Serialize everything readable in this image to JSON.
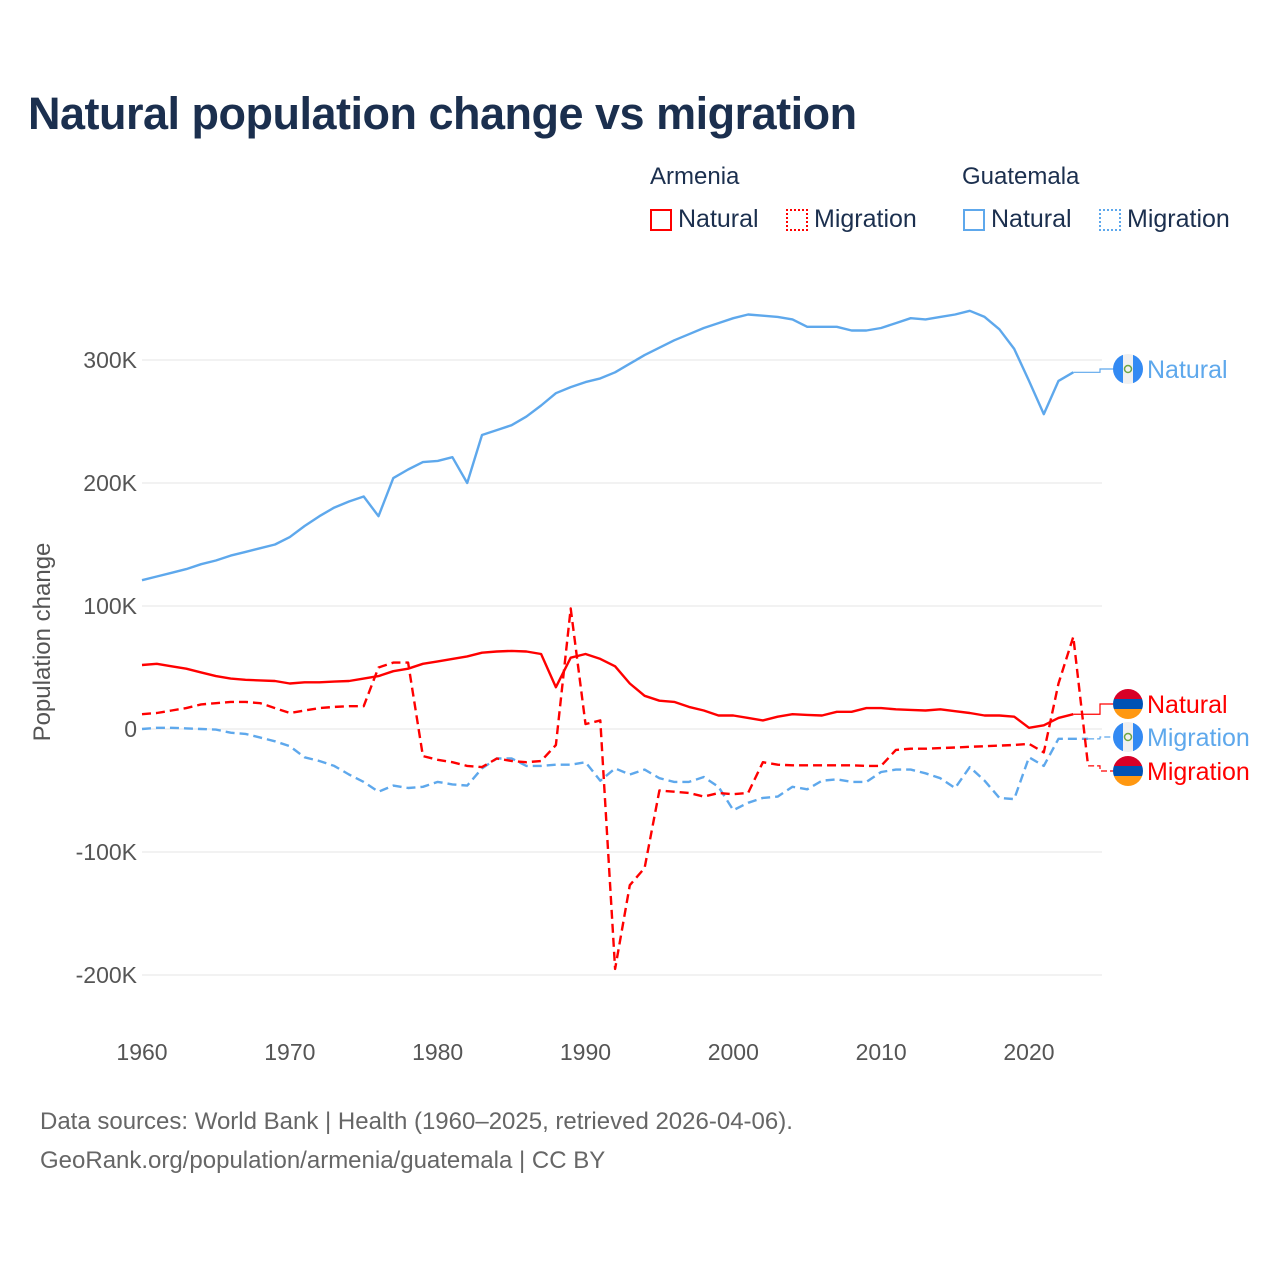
{
  "title": "Natural population change vs migration",
  "legend": {
    "groups": [
      {
        "name": "Armenia",
        "color": "#ff0000",
        "items": [
          "Natural",
          "Migration"
        ]
      },
      {
        "name": "Guatemala",
        "color": "#5ea8ec",
        "items": [
          "Natural",
          "Migration"
        ]
      }
    ]
  },
  "footer": {
    "line1": "Data sources: World Bank | Health (1960–2025, retrieved 2026-04-06).",
    "line2": "GeoRank.org/population/armenia/guatemala | CC BY"
  },
  "chart_data": {
    "type": "line",
    "title": "Natural population change vs migration",
    "xlabel": "",
    "ylabel": "Population change",
    "xlim": [
      1960,
      2025
    ],
    "ylim": [
      -200000,
      300000
    ],
    "x_ticks": [
      "1960",
      "1970",
      "1980",
      "1990",
      "2000",
      "2010",
      "2020"
    ],
    "y_ticks": [
      {
        "value": 300000,
        "label": "300K"
      },
      {
        "value": 200000,
        "label": "200K"
      },
      {
        "value": 100000,
        "label": "100K"
      },
      {
        "value": 0,
        "label": "0"
      },
      {
        "value": -100000,
        "label": "-100K"
      },
      {
        "value": -200000,
        "label": "-200K"
      }
    ],
    "grid": true,
    "start_year": 1960,
    "units": "thousands",
    "series": [
      {
        "name": "Guatemala Natural",
        "label": "Natural",
        "country": "Guatemala",
        "color": "#5ea8ec",
        "dash": false,
        "values": [
          121,
          124,
          127,
          130,
          134,
          137,
          141,
          144,
          147,
          150,
          156,
          165,
          173,
          180,
          185,
          189,
          173,
          204,
          211,
          217,
          218,
          221,
          200,
          239,
          243,
          247,
          254,
          263,
          273,
          278,
          282,
          285,
          290,
          297,
          304,
          310,
          316,
          321,
          326,
          330,
          334,
          337,
          336,
          335,
          333,
          327,
          327,
          327,
          324,
          324,
          326,
          330,
          334,
          333,
          335,
          337,
          340,
          335,
          325,
          309,
          283,
          256,
          283,
          290
        ]
      },
      {
        "name": "Armenia Natural",
        "label": "Natural",
        "country": "Armenia",
        "color": "#ff0000",
        "dash": false,
        "values": [
          52,
          53,
          51,
          49,
          46,
          43,
          41,
          40,
          39.5,
          39,
          37,
          38,
          38,
          38.5,
          39,
          41,
          43,
          47,
          49,
          53,
          55,
          57,
          59,
          62,
          63,
          63.5,
          63,
          61,
          34,
          58,
          61,
          57,
          51,
          37,
          27,
          23,
          22,
          18,
          15,
          11,
          11,
          9,
          7,
          10,
          12,
          11.5,
          11,
          14,
          14,
          17,
          17,
          16,
          15.5,
          15,
          16,
          14.5,
          13,
          11,
          11,
          10,
          1,
          3,
          9,
          12
        ]
      },
      {
        "name": "Guatemala Migration",
        "label": "Migration",
        "country": "Guatemala",
        "color": "#5ea8ec",
        "dash": true,
        "values": [
          0,
          1,
          1,
          0.5,
          0,
          -0.5,
          -3,
          -4,
          -7,
          -10,
          -14,
          -23,
          -26,
          -30,
          -37,
          -43,
          -51,
          -46,
          -48,
          -47,
          -43,
          -45,
          -46,
          -32,
          -24,
          -24,
          -30,
          -30,
          -29,
          -29,
          -27,
          -42,
          -32,
          -37,
          -33,
          -40,
          -43,
          -43,
          -39,
          -47,
          -66,
          -60,
          -56,
          -55,
          -47,
          -49,
          -42,
          -41,
          -43,
          -43,
          -35,
          -33,
          -33,
          -36,
          -40,
          -48,
          -31,
          -42,
          -56,
          -57,
          -23,
          -30,
          -8,
          -8,
          -8
        ]
      },
      {
        "name": "Armenia Migration",
        "label": "Migration",
        "country": "Armenia",
        "color": "#ff0000",
        "dash": true,
        "values": [
          12,
          13,
          15,
          17,
          20,
          21,
          22,
          22,
          21,
          17,
          13,
          15,
          17,
          18,
          18.5,
          18.5,
          50,
          54,
          54,
          -22,
          -25,
          -27,
          -30,
          -31,
          -24,
          -26,
          -27,
          -26,
          -13,
          98,
          4,
          7,
          -195,
          -127,
          -113,
          -50,
          -51,
          -52,
          -55,
          -52,
          -53,
          -52,
          -27,
          -29,
          -29.5,
          -29.5,
          -29.5,
          -29.5,
          -29.5,
          -30,
          -30,
          -17,
          -16,
          -16,
          -15.5,
          -15,
          -14.5,
          -14,
          -13.5,
          -13,
          -12,
          -19,
          37,
          75,
          -30
        ]
      }
    ]
  }
}
